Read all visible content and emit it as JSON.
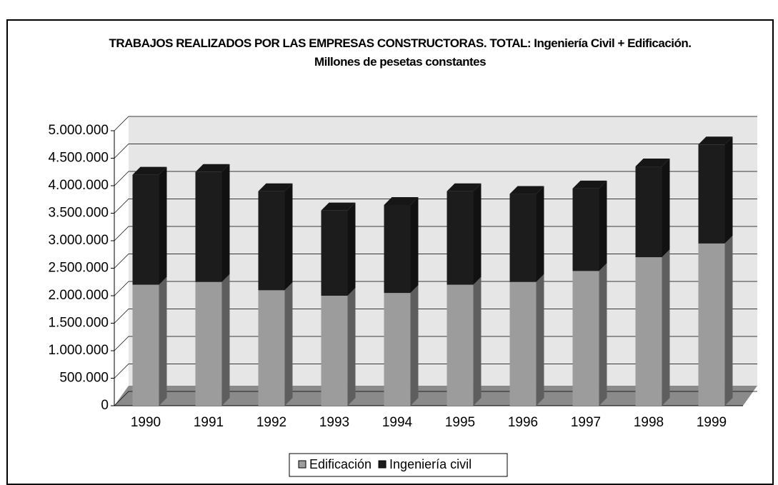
{
  "chart_data": {
    "type": "stacked_bar",
    "title": "TRABAJOS REALIZADOS POR LAS EMPRESAS CONSTRUCTORAS. TOTAL: Ingeniería Civil + Edificación. Millones de pesetas constantes",
    "categories": [
      "1990",
      "1991",
      "1992",
      "1993",
      "1994",
      "1995",
      "1996",
      "1997",
      "1998",
      "1999"
    ],
    "series": [
      {
        "name": "Edificación",
        "color": "#9c9c9c",
        "values": [
          2200000,
          2250000,
          2100000,
          2000000,
          2050000,
          2200000,
          2250000,
          2450000,
          2700000,
          2950000
        ]
      },
      {
        "name": "Ingeniería civil",
        "color": "#1c1c1c",
        "values": [
          2000000,
          2000000,
          1800000,
          1550000,
          1600000,
          1700000,
          1600000,
          1500000,
          1650000,
          1800000
        ]
      }
    ],
    "ylim": [
      0,
      5000000
    ],
    "yticks": [
      0,
      {
        "value": 500000,
        "label": "500.000"
      },
      {
        "value": 1000000,
        "label": "1.000.000"
      },
      {
        "value": 1500000,
        "label": "1.500.000"
      },
      {
        "value": 2000000,
        "label": "2.000.000"
      },
      {
        "value": 2500000,
        "label": "2.500.000"
      },
      {
        "value": 3000000,
        "label": "3.000.000"
      },
      {
        "value": 3500000,
        "label": "3.500.000"
      },
      {
        "value": 4000000,
        "label": "4.000.000"
      },
      {
        "value": 4500000,
        "label": "4.500.000"
      },
      {
        "value": 5000000,
        "label": "5.000.000"
      }
    ],
    "grid": true,
    "legend": "bottom"
  }
}
